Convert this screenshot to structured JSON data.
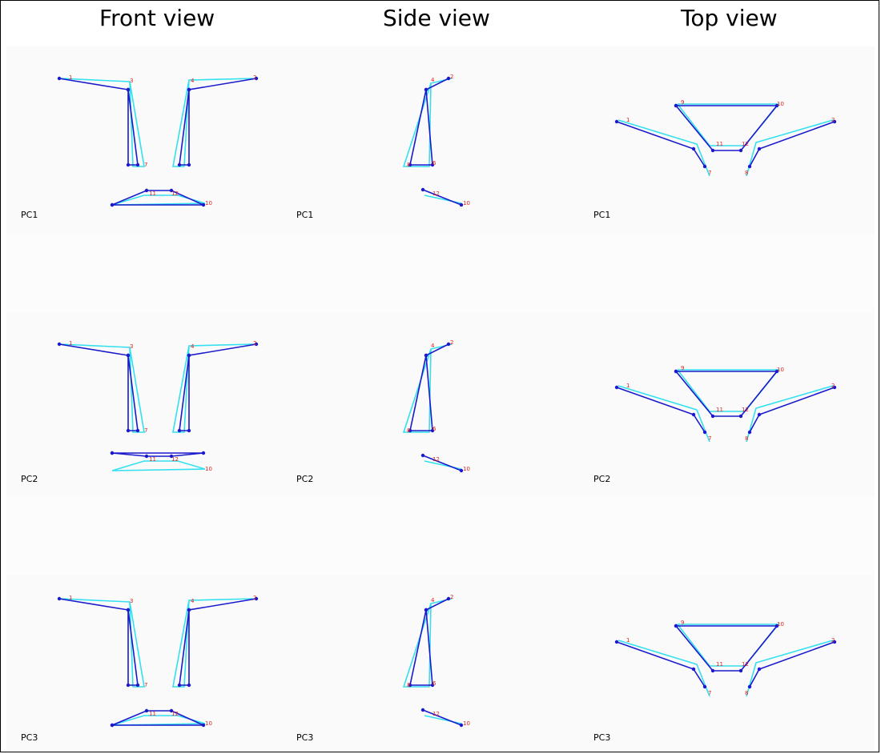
{
  "figure": {
    "column_titles": [
      "Front view",
      "Side view",
      "Top view"
    ],
    "row_labels": [
      "PC1",
      "PC2",
      "PC3"
    ],
    "colors": {
      "mean_shape": "#1a1acc",
      "variant_shape": "#33e0ef",
      "point_labels": "#e0201a",
      "panel_band": "#fafafa"
    }
  },
  "chart_data": {
    "type": "diagram",
    "rows": [
      "PC1",
      "PC2",
      "PC3"
    ],
    "views": [
      "Front view",
      "Side view",
      "Top view"
    ]
  }
}
